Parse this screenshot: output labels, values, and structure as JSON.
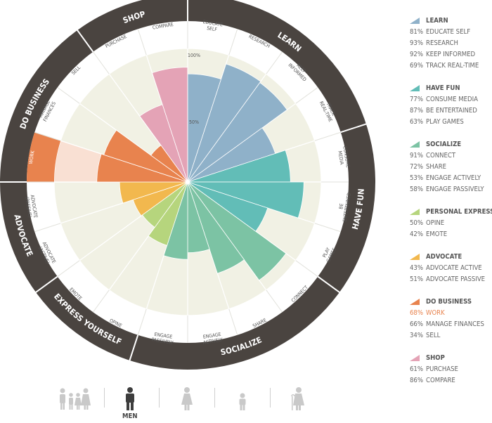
{
  "chart_data": {
    "type": "polar-area",
    "r_ticks": [
      "100%",
      "50%"
    ],
    "categories": [
      {
        "name": "LEARN",
        "color": "#8fb1c9",
        "items": [
          {
            "label": "EDUCATE SELF",
            "wheel": [
              "EDUCATE",
              "SELF"
            ],
            "value": 81
          },
          {
            "label": "RESEARCH",
            "wheel": [
              "RESEARCH"
            ],
            "value": 93
          },
          {
            "label": "KEEP INFORMED",
            "wheel": [
              "KEEP",
              "INFORMED"
            ],
            "value": 92
          },
          {
            "label": "TRACK REAL-TIME",
            "wheel": [
              "TRACK",
              "REAL-TIME"
            ],
            "value": 69
          }
        ]
      },
      {
        "name": "HAVE FUN",
        "color": "#62bdb7",
        "items": [
          {
            "label": "CONSUME MEDIA",
            "wheel": [
              "CONSUME",
              "MEDIA"
            ],
            "value": 77
          },
          {
            "label": "BE ENTERTAINED",
            "wheel": [
              "BE",
              "ENTERTAINED"
            ],
            "value": 87
          },
          {
            "label": "PLAY GAMES",
            "wheel": [
              "PLAY",
              "GAMES"
            ],
            "value": 63
          }
        ]
      },
      {
        "name": "SOCIALIZE",
        "color": "#7cc3a4",
        "items": [
          {
            "label": "CONNECT",
            "wheel": [
              "CONNECT"
            ],
            "value": 91
          },
          {
            "label": "SHARE",
            "wheel": [
              "SHARE"
            ],
            "value": 72
          },
          {
            "label": "ENGAGE ACTIVELY",
            "wheel": [
              "ENGAGE",
              "ACTIVELY"
            ],
            "value": 53
          },
          {
            "label": "ENGAGE PASSIVELY",
            "wheel": [
              "ENGAGE",
              "PASSIVELY"
            ],
            "value": 58
          }
        ]
      },
      {
        "name": "PERSONAL EXPRESSION",
        "wheel_name": "EXPRESS YOURSELF",
        "color": "#b6d57d",
        "items": [
          {
            "label": "OPINE",
            "wheel": [
              "OPINE"
            ],
            "value": 50
          },
          {
            "label": "EMOTE",
            "wheel": [
              "EMOTE"
            ],
            "value": 42
          }
        ]
      },
      {
        "name": "ADVOCATE",
        "color": "#f2b84e",
        "items": [
          {
            "label": "ADVOCATE ACTIVE",
            "wheel": [
              "ADVOCATE",
              "(ACTIVE)"
            ],
            "value": 43
          },
          {
            "label": "ADVOCATE PASSIVE",
            "wheel": [
              "ADVOCATE",
              "(PASSIVE)"
            ],
            "value": 51
          }
        ]
      },
      {
        "name": "DO BUSINESS",
        "color": "#e8834e",
        "items": [
          {
            "label": "WORK",
            "wheel": [
              "WORK"
            ],
            "value": 68,
            "highlight": true
          },
          {
            "label": "MANAGE FINANCES",
            "wheel": [
              "MANAGE",
              "FINANCES"
            ],
            "value": 66
          },
          {
            "label": "SELL",
            "wheel": [
              "SELL"
            ],
            "value": 34
          }
        ]
      },
      {
        "name": "SHOP",
        "color": "#e4a3b6",
        "items": [
          {
            "label": "PURCHASE",
            "wheel": [
              "PURCHASE"
            ],
            "value": 61
          },
          {
            "label": "COMPARE",
            "wheel": [
              "COMPARE"
            ],
            "value": 86
          }
        ]
      }
    ]
  },
  "footer": {
    "selected_label": "MEN",
    "personas": [
      "family",
      "men",
      "women",
      "kids",
      "seniors"
    ]
  }
}
